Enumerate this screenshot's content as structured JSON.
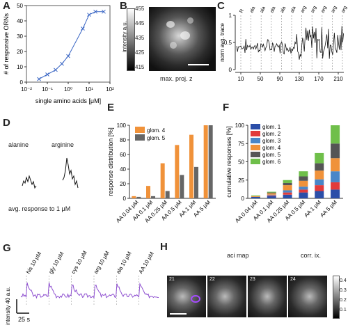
{
  "panels": {
    "A": {
      "label": "A",
      "chart_data": {
        "type": "scatter",
        "xlabel": "single amino acids [μM]",
        "ylabel": "# of responsive ORNs",
        "xscale": "log",
        "xlim": [
          0.01,
          100
        ],
        "ylim": [
          0,
          50
        ],
        "xticks": [
          0.01,
          0.1,
          1,
          10,
          100
        ],
        "xtick_labels": [
          "10⁻²",
          "10⁻¹",
          "10⁰",
          "10¹",
          "10²"
        ],
        "yticks": [
          0,
          10,
          20,
          30,
          40,
          50
        ],
        "x": [
          0.04,
          0.1,
          0.25,
          0.5,
          1,
          5,
          10,
          20,
          50
        ],
        "y": [
          2,
          5,
          8,
          12,
          17,
          35,
          44,
          46,
          46
        ],
        "series_color": "#3a66c4"
      }
    },
    "B": {
      "label": "B",
      "colorbar_label": "intensity a.u.",
      "colorbar_ticks": [
        "455",
        "445",
        "435",
        "425",
        "415"
      ],
      "caption": "max. proj. z"
    },
    "C": {
      "label": "C",
      "ylabel": "norm avg. trace",
      "yticks": [
        "1",
        "0.5",
        "0"
      ],
      "xticks": [
        "10",
        "50",
        "90",
        "130",
        "170",
        "210"
      ],
      "stim_labels": [
        "R",
        "ala",
        "ala",
        "ala",
        "ala",
        "ala",
        "arg",
        "arg",
        "arg",
        "arg",
        "arg"
      ]
    },
    "D": {
      "label": "D",
      "trace1": "alanine",
      "trace2": "arginine",
      "caption": "avg. response to 1 μM"
    },
    "E": {
      "label": "E",
      "chart_data": {
        "type": "bar",
        "ylabel": "response distribution [%]",
        "ylim": [
          0,
          100
        ],
        "yticks": [
          0,
          20,
          40,
          60,
          80,
          100
        ],
        "categories": [
          "AA 0.04 μM",
          "AA 0.1 μM",
          "AA 0.25 μM",
          "AA 0.5 μM",
          "AA 1 μM",
          "AA 5 μM"
        ],
        "series": [
          {
            "name": "glom. 4",
            "color": "#f0923a",
            "values": [
              3,
              17,
              48,
              73,
              87,
              100
            ]
          },
          {
            "name": "glom. 5",
            "color": "#666666",
            "values": [
              2,
              3,
              10,
              32,
              43,
              100
            ]
          }
        ],
        "legend_position": "top-left"
      }
    },
    "F": {
      "label": "F",
      "chart_data": {
        "type": "bar",
        "stacked": true,
        "ylabel": "cumulative responses [%]",
        "ylim": [
          0,
          100
        ],
        "yticks": [
          0,
          25,
          50,
          75,
          100
        ],
        "categories": [
          "AA 0.04 μM",
          "AA 0.1 μM",
          "AA 0.25 μM",
          "AA 0.5 μM",
          "AA 1 μM",
          "AA 5 μM"
        ],
        "series": [
          {
            "name": "glom. 1",
            "color": "#2b4ea8",
            "values": [
              2,
              3,
              5,
              8,
              10,
              12
            ]
          },
          {
            "name": "glom. 2",
            "color": "#e23b3b",
            "values": [
              0,
              1,
              3,
              4,
              8,
              10
            ]
          },
          {
            "name": "glom. 3",
            "color": "#4a86c8",
            "values": [
              0,
              1,
              3,
              4,
              8,
              15
            ]
          },
          {
            "name": "glom. 4",
            "color": "#f0923a",
            "values": [
              1,
              2,
              7,
              8,
              12,
              18
            ]
          },
          {
            "name": "glom. 5",
            "color": "#555555",
            "values": [
              0,
              1,
              3,
              6,
              10,
              20
            ]
          },
          {
            "name": "glom. 6",
            "color": "#6fbf4a",
            "values": [
              1,
              1,
              4,
              7,
              14,
              25
            ]
          }
        ],
        "legend_position": "top-left"
      }
    },
    "G": {
      "label": "G",
      "stim_labels": [
        "his 10 μM",
        "gly 10 μM",
        "cys 10 μM",
        "arg 10 μM",
        "ala 10 μM",
        "AA 10 μM"
      ],
      "scale_y": "intensity 40 a.u.",
      "scale_x": "25 s"
    },
    "H": {
      "label": "H",
      "title": "aci map",
      "frames": [
        "21",
        "22",
        "23",
        "24"
      ],
      "colorbar_label": "corr. ix.",
      "colorbar_ticks": [
        "0.4",
        "0.3",
        "0.2",
        "0.1"
      ]
    }
  }
}
